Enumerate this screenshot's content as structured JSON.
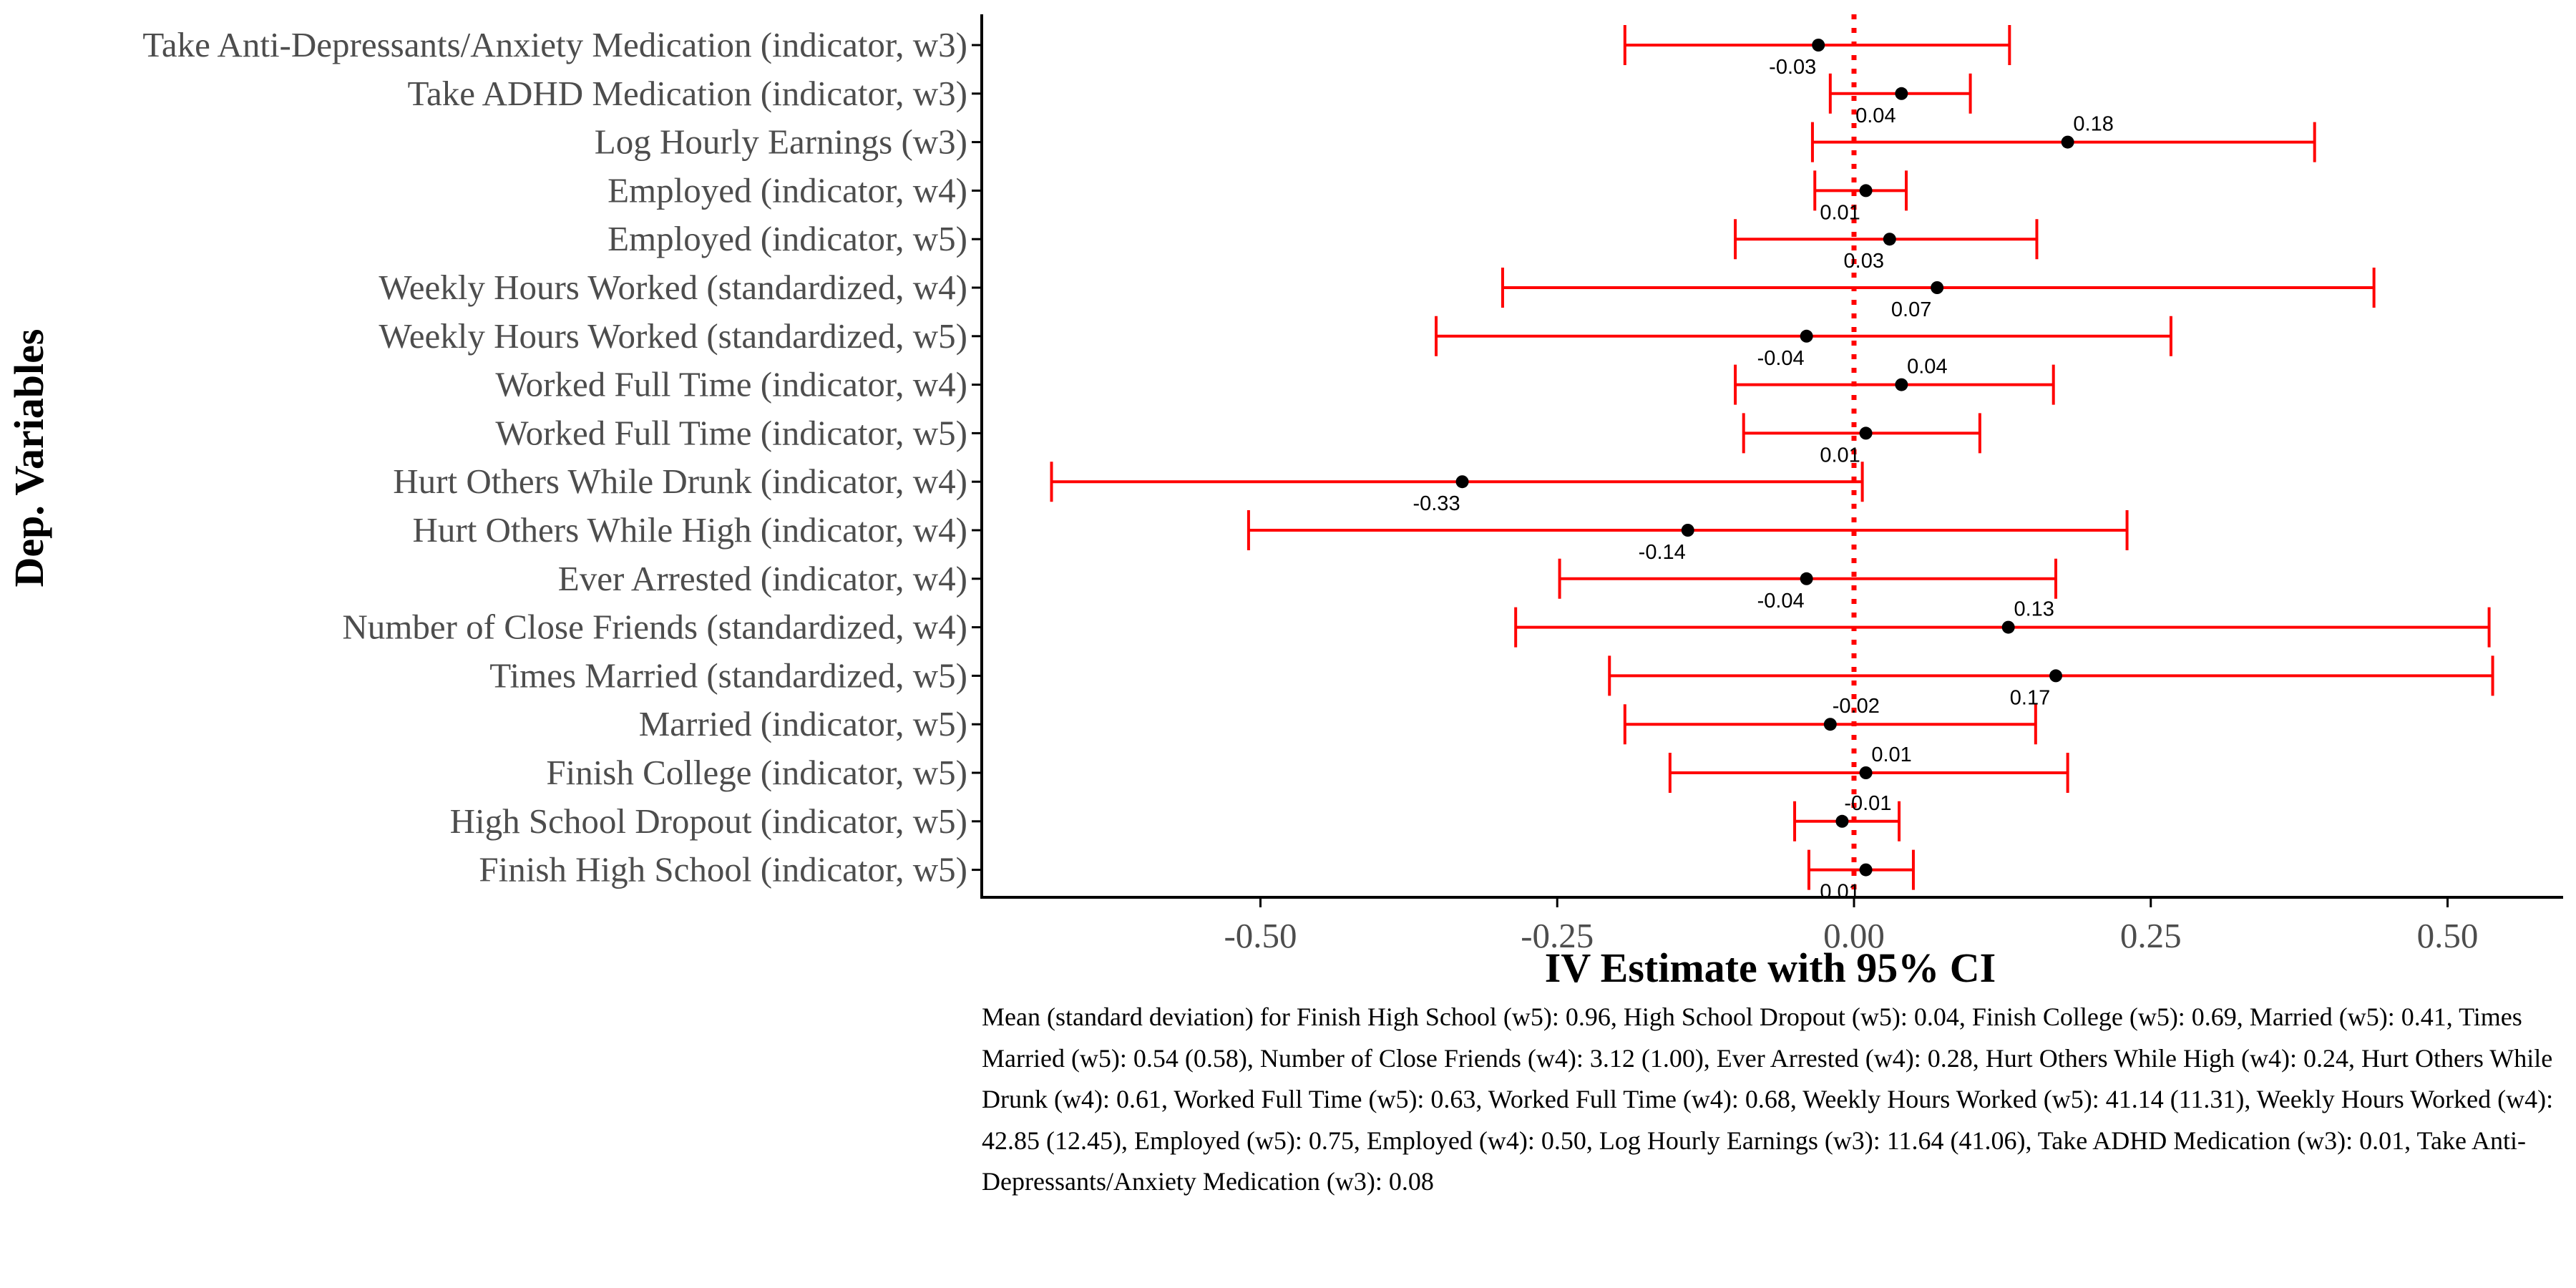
{
  "chart_data": {
    "type": "dot-whisker",
    "xlabel": "IV Estimate with 95% CI",
    "ylabel": "Dep. Variables",
    "xlim": [
      -0.74,
      1.28
    ],
    "xticks": [
      -0.5,
      -0.25,
      0.0,
      0.25,
      0.5
    ],
    "xtick_labels": [
      "-0.50",
      "-0.25",
      "0.00",
      "0.25",
      "0.50"
    ],
    "reference_line": 0,
    "colors": {
      "ci": "#ff0000",
      "point": "#000000",
      "reference": "#ff0000"
    },
    "points": [
      {
        "label": "Take Anti-Depressants/Anxiety Medication (indicator, w3)",
        "estimate": -0.03,
        "lower": -0.193,
        "upper": 0.131,
        "value_label": "-0.03",
        "label_side": "below"
      },
      {
        "label": "Take ADHD Medication (indicator, w3)",
        "estimate": 0.04,
        "lower": -0.02,
        "upper": 0.098,
        "value_label": "0.04",
        "label_side": "below"
      },
      {
        "label": "Log Hourly Earnings (w3)",
        "estimate": 0.18,
        "lower": -0.035,
        "upper": 0.388,
        "value_label": "0.18",
        "label_side": "above"
      },
      {
        "label": "Employed (indicator, w4)",
        "estimate": 0.01,
        "lower": -0.033,
        "upper": 0.044,
        "value_label": "0.01",
        "label_side": "below"
      },
      {
        "label": "Employed (indicator, w5)",
        "estimate": 0.03,
        "lower": -0.1,
        "upper": 0.154,
        "value_label": "0.03",
        "label_side": "below"
      },
      {
        "label": "Weekly Hours Worked (standardized, w4)",
        "estimate": 0.07,
        "lower": -0.296,
        "upper": 0.438,
        "value_label": "0.07",
        "label_side": "below"
      },
      {
        "label": "Weekly Hours Worked (standardized, w5)",
        "estimate": -0.04,
        "lower": -0.352,
        "upper": 0.267,
        "value_label": "-0.04",
        "label_side": "below"
      },
      {
        "label": "Worked Full Time (indicator, w4)",
        "estimate": 0.04,
        "lower": -0.1,
        "upper": 0.168,
        "value_label": "0.04",
        "label_side": "above"
      },
      {
        "label": "Worked Full Time (indicator, w5)",
        "estimate": 0.01,
        "lower": -0.093,
        "upper": 0.106,
        "value_label": "0.01",
        "label_side": "below"
      },
      {
        "label": "Hurt Others While Drunk (indicator, w4)",
        "estimate": -0.33,
        "lower": -0.676,
        "upper": 0.007,
        "value_label": "-0.33",
        "label_side": "below"
      },
      {
        "label": "Hurt Others While High (indicator, w4)",
        "estimate": -0.14,
        "lower": -0.51,
        "upper": 0.23,
        "value_label": "-0.14",
        "label_side": "below"
      },
      {
        "label": "Ever Arrested (indicator, w4)",
        "estimate": -0.04,
        "lower": -0.248,
        "upper": 0.17,
        "value_label": "-0.04",
        "label_side": "below"
      },
      {
        "label": "Number of Close Friends (standardized, w4)",
        "estimate": 0.13,
        "lower": -0.285,
        "upper": 0.535,
        "value_label": "0.13",
        "label_side": "above"
      },
      {
        "label": "Times Married (standardized, w5)",
        "estimate": 0.17,
        "lower": -0.206,
        "upper": 0.538,
        "value_label": "0.17",
        "label_side": "below"
      },
      {
        "label": "Married (indicator, w5)",
        "estimate": -0.02,
        "lower": -0.193,
        "upper": 0.153,
        "value_label": "-0.02",
        "label_side": "above"
      },
      {
        "label": "Finish College (indicator, w5)",
        "estimate": 0.01,
        "lower": -0.155,
        "upper": 0.18,
        "value_label": "0.01",
        "label_side": "above"
      },
      {
        "label": "High School Dropout (indicator, w5)",
        "estimate": -0.01,
        "lower": -0.05,
        "upper": 0.038,
        "value_label": "-0.01",
        "label_side": "above"
      },
      {
        "label": "Finish High School (indicator, w5)",
        "estimate": 0.01,
        "lower": -0.038,
        "upper": 0.05,
        "value_label": "0.01",
        "label_side": "below"
      }
    ]
  },
  "note": "Mean (standard deviation) for Finish High School (w5): 0.96, High School Dropout (w5): 0.04, Finish College (w5): 0.69, Married (w5): 0.41, Times Married (w5): 0.54 (0.58), Number of Close Friends (w4): 3.12 (1.00), Ever Arrested (w4): 0.28, Hurt Others While High (w4): 0.24, Hurt Others While Drunk (w4): 0.61, Worked Full Time (w5): 0.63, Worked Full Time (w4): 0.68, Weekly Hours Worked (w5): 41.14 (11.31), Weekly Hours Worked (w4): 42.85 (12.45), Employed (w5): 0.75, Employed (w4): 0.50, Log Hourly Earnings (w3): 11.64 (41.06), Take ADHD Medication (w3): 0.01, Take Anti-Depressants/Anxiety Medication (w3): 0.08"
}
